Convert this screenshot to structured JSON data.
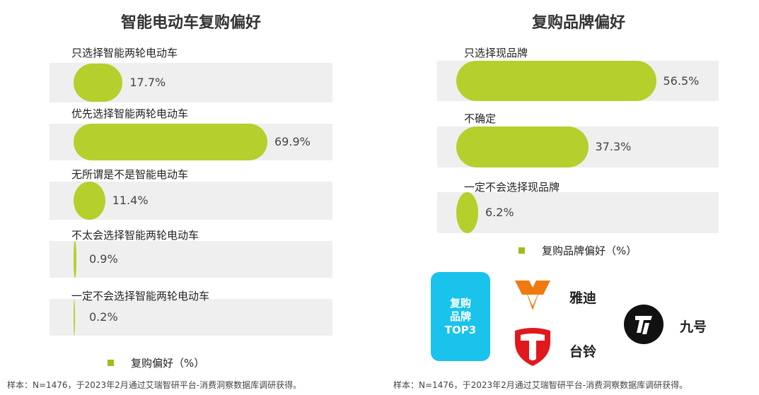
{
  "chart_data": [
    {
      "type": "bar",
      "title": "智能电动车复购偏好",
      "categories": [
        "只选择智能两轮电动车",
        "优先选择智能两轮电动车",
        "无所谓是不是智能电动车",
        "不太会选择智能两轮电动车",
        "一定不会选择智能两轮电动车"
      ],
      "values": [
        17.7,
        69.9,
        11.4,
        0.9,
        0.2
      ],
      "value_labels": [
        "17.7%",
        "69.9%",
        "11.4%",
        "0.9%",
        "0.2%"
      ],
      "series": [
        {
          "name": "复购偏好（%）",
          "values": [
            17.7,
            69.9,
            11.4,
            0.9,
            0.2
          ]
        }
      ],
      "legend": "bottom",
      "xlim": [
        0,
        100
      ],
      "color": "#b5cf2d"
    },
    {
      "type": "bar",
      "title": "复购品牌偏好",
      "categories": [
        "只选择现品牌",
        "不确定",
        "一定不会选择现品牌"
      ],
      "values": [
        56.5,
        37.3,
        6.2
      ],
      "value_labels": [
        "56.5%",
        "37.3%",
        "6.2%"
      ],
      "series": [
        {
          "name": "复购品牌偏好（%）",
          "values": [
            56.5,
            37.3,
            6.2
          ]
        }
      ],
      "legend": "bottom",
      "xlim": [
        0,
        100
      ],
      "color": "#b5cf2d"
    }
  ],
  "left": {
    "legend_label": "复购偏好（%）",
    "note": "样本：N=1476，于2023年2月通过艾瑞智研平台-消费洞察数据库调研获得。"
  },
  "right": {
    "legend_label": "复购品牌偏好（%）",
    "note": "样本：N=1476，于2023年2月通过艾瑞智研平台-消费洞察数据库调研获得。",
    "top3": {
      "line1": "复购",
      "line2": "品牌",
      "line3": "TOP3"
    },
    "brands": [
      {
        "name": "雅迪",
        "icon": "yadea-logo-icon",
        "color": "#f07a10"
      },
      {
        "name": "台铃",
        "icon": "tailg-logo-icon",
        "color": "#e0181e"
      },
      {
        "name": "九号",
        "icon": "ninebot-logo-icon",
        "color": "#111111"
      }
    ]
  },
  "colors": {
    "bar": "#b5cf2d",
    "track": "#efefef",
    "legend": "#9bbf1f",
    "top3": "#19c3ec"
  }
}
